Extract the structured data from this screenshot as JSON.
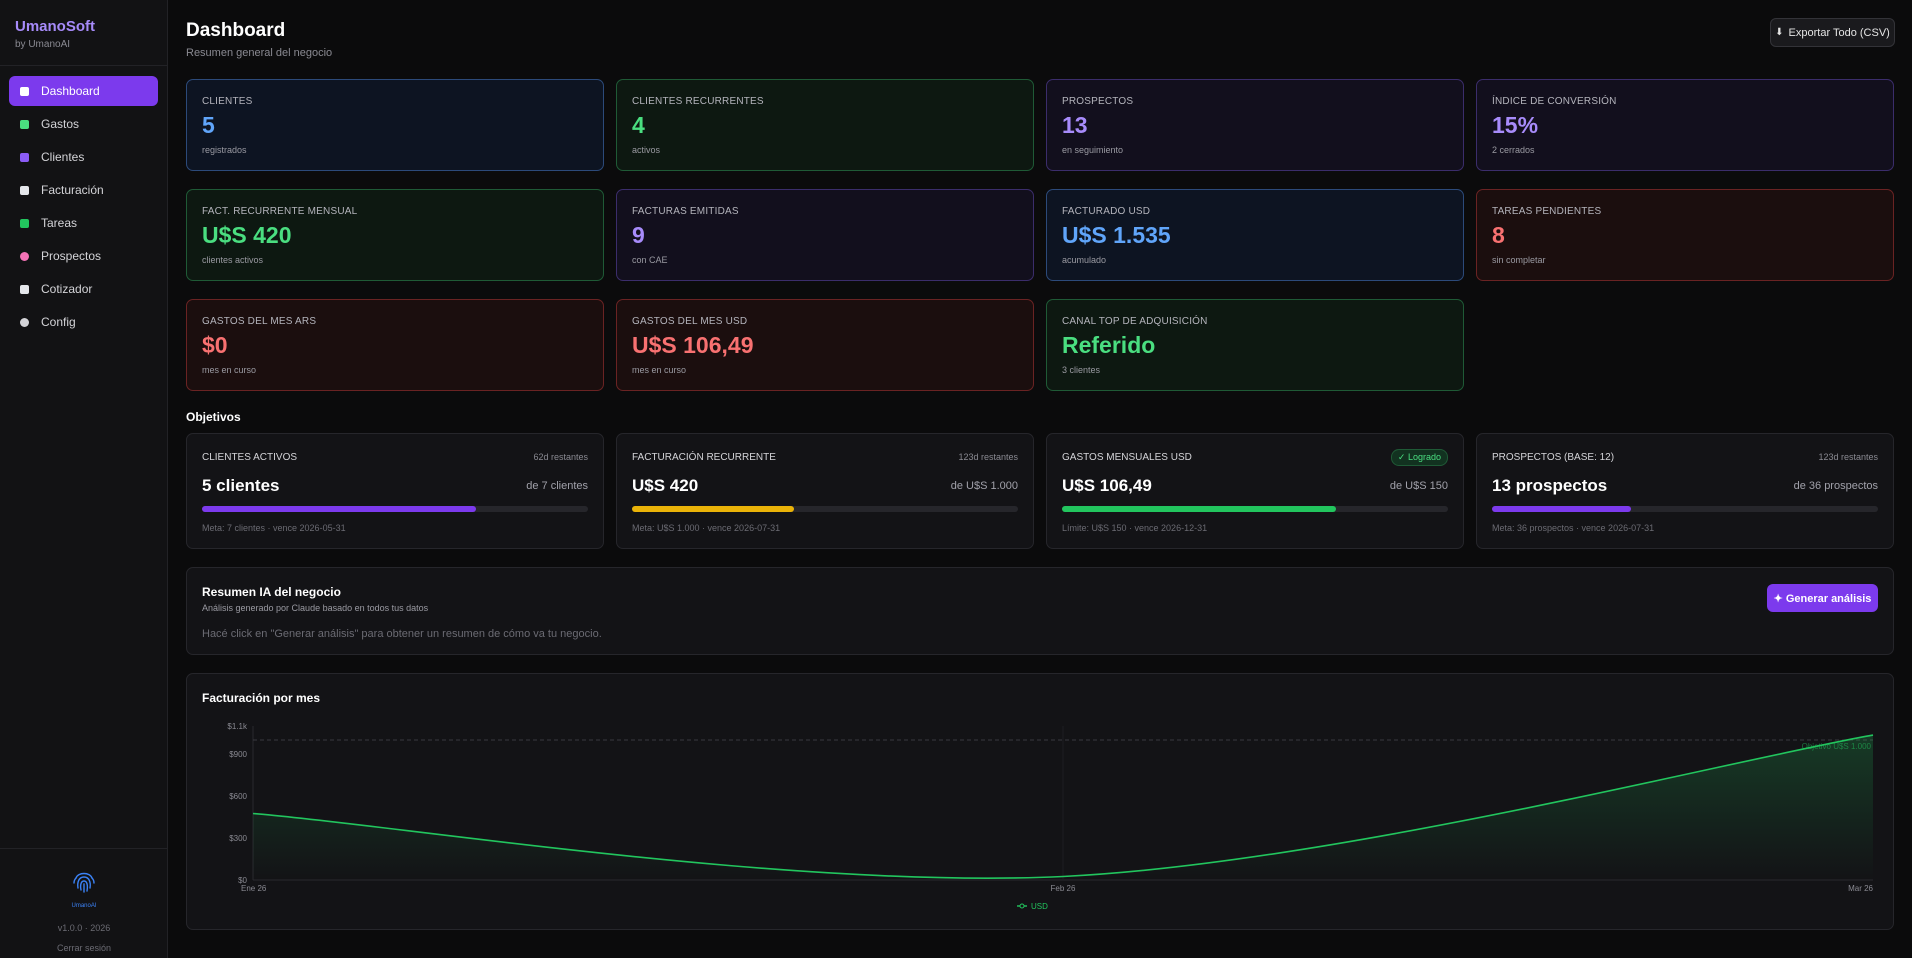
{
  "brand": {
    "name": "UmanoSoft",
    "sub": "by UmanoAI"
  },
  "nav": [
    {
      "label": "Dashboard",
      "icon": "dashboard-icon",
      "color": "#ffffff"
    },
    {
      "label": "Gastos",
      "icon": "money-icon",
      "color": "#4ade80"
    },
    {
      "label": "Clientes",
      "icon": "users-icon",
      "color": "#8b5cf6"
    },
    {
      "label": "Facturación",
      "icon": "invoice-icon",
      "color": "#e5e7eb"
    },
    {
      "label": "Tareas",
      "icon": "checkbox-icon",
      "color": "#22c55e"
    },
    {
      "label": "Prospectos",
      "icon": "target-icon",
      "color": "#f472b6"
    },
    {
      "label": "Cotizador",
      "icon": "document-icon",
      "color": "#e5e7eb"
    },
    {
      "label": "Config",
      "icon": "gear-icon",
      "color": "#d4d4d8"
    }
  ],
  "footer": {
    "logo_text": "UmanoAI",
    "version": "v1.0.0 · 2026",
    "logout": "Cerrar sesión"
  },
  "header": {
    "title": "Dashboard",
    "subtitle": "Resumen general del negocio",
    "export": "Exportar Todo (CSV)"
  },
  "cards": [
    {
      "label": "CLIENTES",
      "value": "5",
      "sub": "registrados",
      "theme": "blue"
    },
    {
      "label": "CLIENTES RECURRENTES",
      "value": "4",
      "sub": "activos",
      "theme": "green"
    },
    {
      "label": "PROSPECTOS",
      "value": "13",
      "sub": "en seguimiento",
      "theme": "purple"
    },
    {
      "label": "ÍNDICE DE CONVERSIÓN",
      "value": "15%",
      "sub": "2 cerrados",
      "theme": "purple"
    },
    {
      "label": "FACT. RECURRENTE MENSUAL",
      "value": "U$S 420",
      "sub": "clientes activos",
      "theme": "green"
    },
    {
      "label": "FACTURAS EMITIDAS",
      "value": "9",
      "sub": "con CAE",
      "theme": "purple"
    },
    {
      "label": "FACTURADO USD",
      "value": "U$S 1.535",
      "sub": "acumulado",
      "theme": "blue"
    },
    {
      "label": "TAREAS PENDIENTES",
      "value": "8",
      "sub": "sin completar",
      "theme": "red"
    },
    {
      "label": "GASTOS DEL MES ARS",
      "value": "$0",
      "sub": "mes en curso",
      "theme": "red"
    },
    {
      "label": "GASTOS DEL MES USD",
      "value": "U$S 106,49",
      "sub": "mes en curso",
      "theme": "red"
    },
    {
      "label": "CANAL TOP DE ADQUISICIÓN",
      "value": "Referido",
      "sub": "3 clientes",
      "theme": "green"
    }
  ],
  "objectives": {
    "title": "Objetivos",
    "items": [
      {
        "label": "CLIENTES ACTIVOS",
        "remain": "62d restantes",
        "badge": "",
        "value": "5 clientes",
        "of": "de 7 clientes",
        "progress": 0.71,
        "color": "#7c3aed",
        "meta": "Meta: 7 clientes · vence 2026-05-31"
      },
      {
        "label": "FACTURACIÓN RECURRENTE",
        "remain": "123d restantes",
        "badge": "",
        "value": "U$S 420",
        "of": "de U$S 1.000",
        "progress": 0.42,
        "color": "#eab308",
        "meta": "Meta: U$S 1.000 · vence 2026-07-31"
      },
      {
        "label": "GASTOS MENSUALES USD",
        "remain": "",
        "badge": "✓ Logrado",
        "value": "U$S 106,49",
        "of": "de U$S 150",
        "progress": 0.71,
        "color": "#22c55e",
        "meta": "Límite: U$S 150 · vence 2026-12-31"
      },
      {
        "label": "PROSPECTOS (BASE: 12)",
        "remain": "123d restantes",
        "badge": "",
        "value": "13 prospectos",
        "of": "de 36 prospectos",
        "progress": 0.36,
        "color": "#7c3aed",
        "meta": "Meta: 36 prospectos · vence 2026-07-31"
      }
    ]
  },
  "ai": {
    "title": "Resumen IA del negocio",
    "subtitle": "Análisis generado por Claude basado en todos tus datos",
    "hint": "Hacé click en \"Generar análisis\" para obtener un resumen de cómo va tu negocio.",
    "button": "✦ Generar análisis"
  },
  "chart_data": {
    "type": "area",
    "title": "Facturación por mes",
    "categories": [
      "Ene 26",
      "Feb 26",
      "Mar 26"
    ],
    "series": [
      {
        "name": "USD",
        "values": [
          475,
          25,
          1035
        ],
        "color": "#22c55e"
      }
    ],
    "ylim": [
      0,
      1100
    ],
    "yticks": [
      {
        "v": 0,
        "label": "$0"
      },
      {
        "v": 300,
        "label": "$300"
      },
      {
        "v": 600,
        "label": "$600"
      },
      {
        "v": 900,
        "label": "$900"
      },
      {
        "v": 1100,
        "label": "$1.1k"
      }
    ],
    "target": {
      "value": 1000,
      "label": "Objetivo U$S 1.000"
    },
    "legend": "bottom-center"
  }
}
